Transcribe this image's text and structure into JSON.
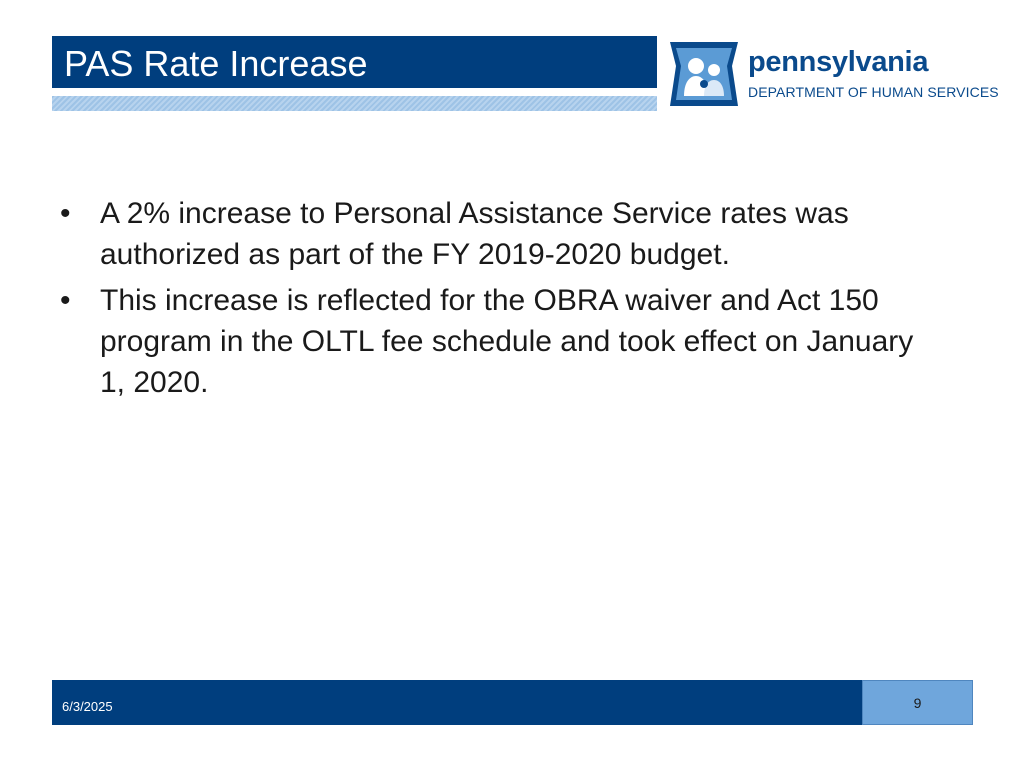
{
  "slide": {
    "title": "PAS Rate Increase",
    "bullets": [
      "A 2% increase to Personal Assistance Service rates was authorized as part of the FY 2019-2020 budget.",
      "This increase is reflected for the OBRA waiver and Act 150 program in the OLTL fee schedule and took effect on January 1, 2020."
    ]
  },
  "logo": {
    "wordmark": "pennsylvania",
    "department": "DEPARTMENT OF HUMAN SERVICES",
    "icon": "keystone-family-icon"
  },
  "footer": {
    "date": "6/3/2025",
    "page_number": "9"
  },
  "colors": {
    "primary_blue": "#003e7e",
    "light_blue": "#6fa6dc",
    "logo_blue": "#0a4a8c"
  }
}
